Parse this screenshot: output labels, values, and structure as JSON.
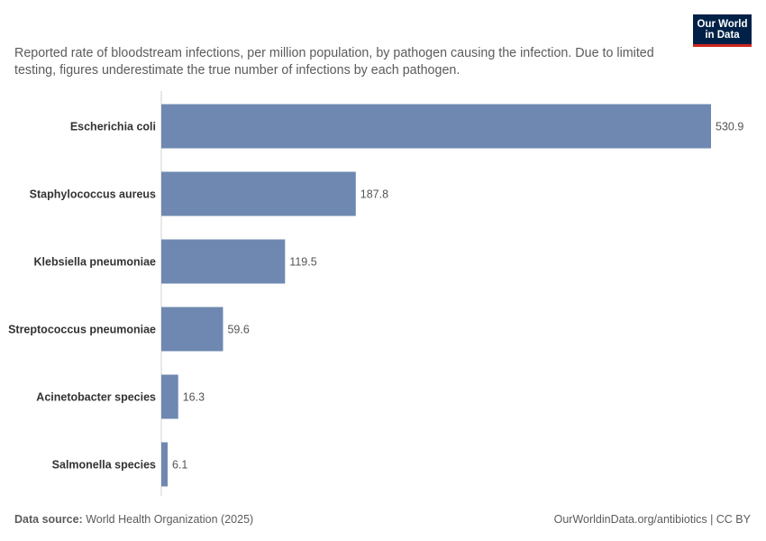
{
  "logo": {
    "line1": "Our World",
    "line2": "in Data"
  },
  "subtitle": "Reported rate of bloodstream infections, per million population, by pathogen causing the infection. Due to limited testing, figures underestimate the true number of infections by each pathogen.",
  "footer": {
    "source_label": "Data source:",
    "source_text": "World Health Organization (2025)",
    "url_license": "OurWorldinData.org/antibiotics | CC BY"
  },
  "colors": {
    "bar": "#6f88b1",
    "axis": "#d0d0d0",
    "label": "#333333",
    "value": "#555555"
  },
  "chart_data": {
    "type": "bar",
    "orientation": "horizontal",
    "categories": [
      "Escherichia coli",
      "Staphylococcus aureus",
      "Klebsiella pneumoniae",
      "Streptococcus pneumoniae",
      "Acinetobacter species",
      "Salmonella species"
    ],
    "values": [
      530.9,
      187.8,
      119.5,
      59.6,
      16.3,
      6.1
    ],
    "value_labels": [
      "530.9",
      "187.8",
      "119.5",
      "59.6",
      "16.3",
      "6.1"
    ],
    "xlim": [
      0,
      530.9
    ],
    "grid": false
  }
}
